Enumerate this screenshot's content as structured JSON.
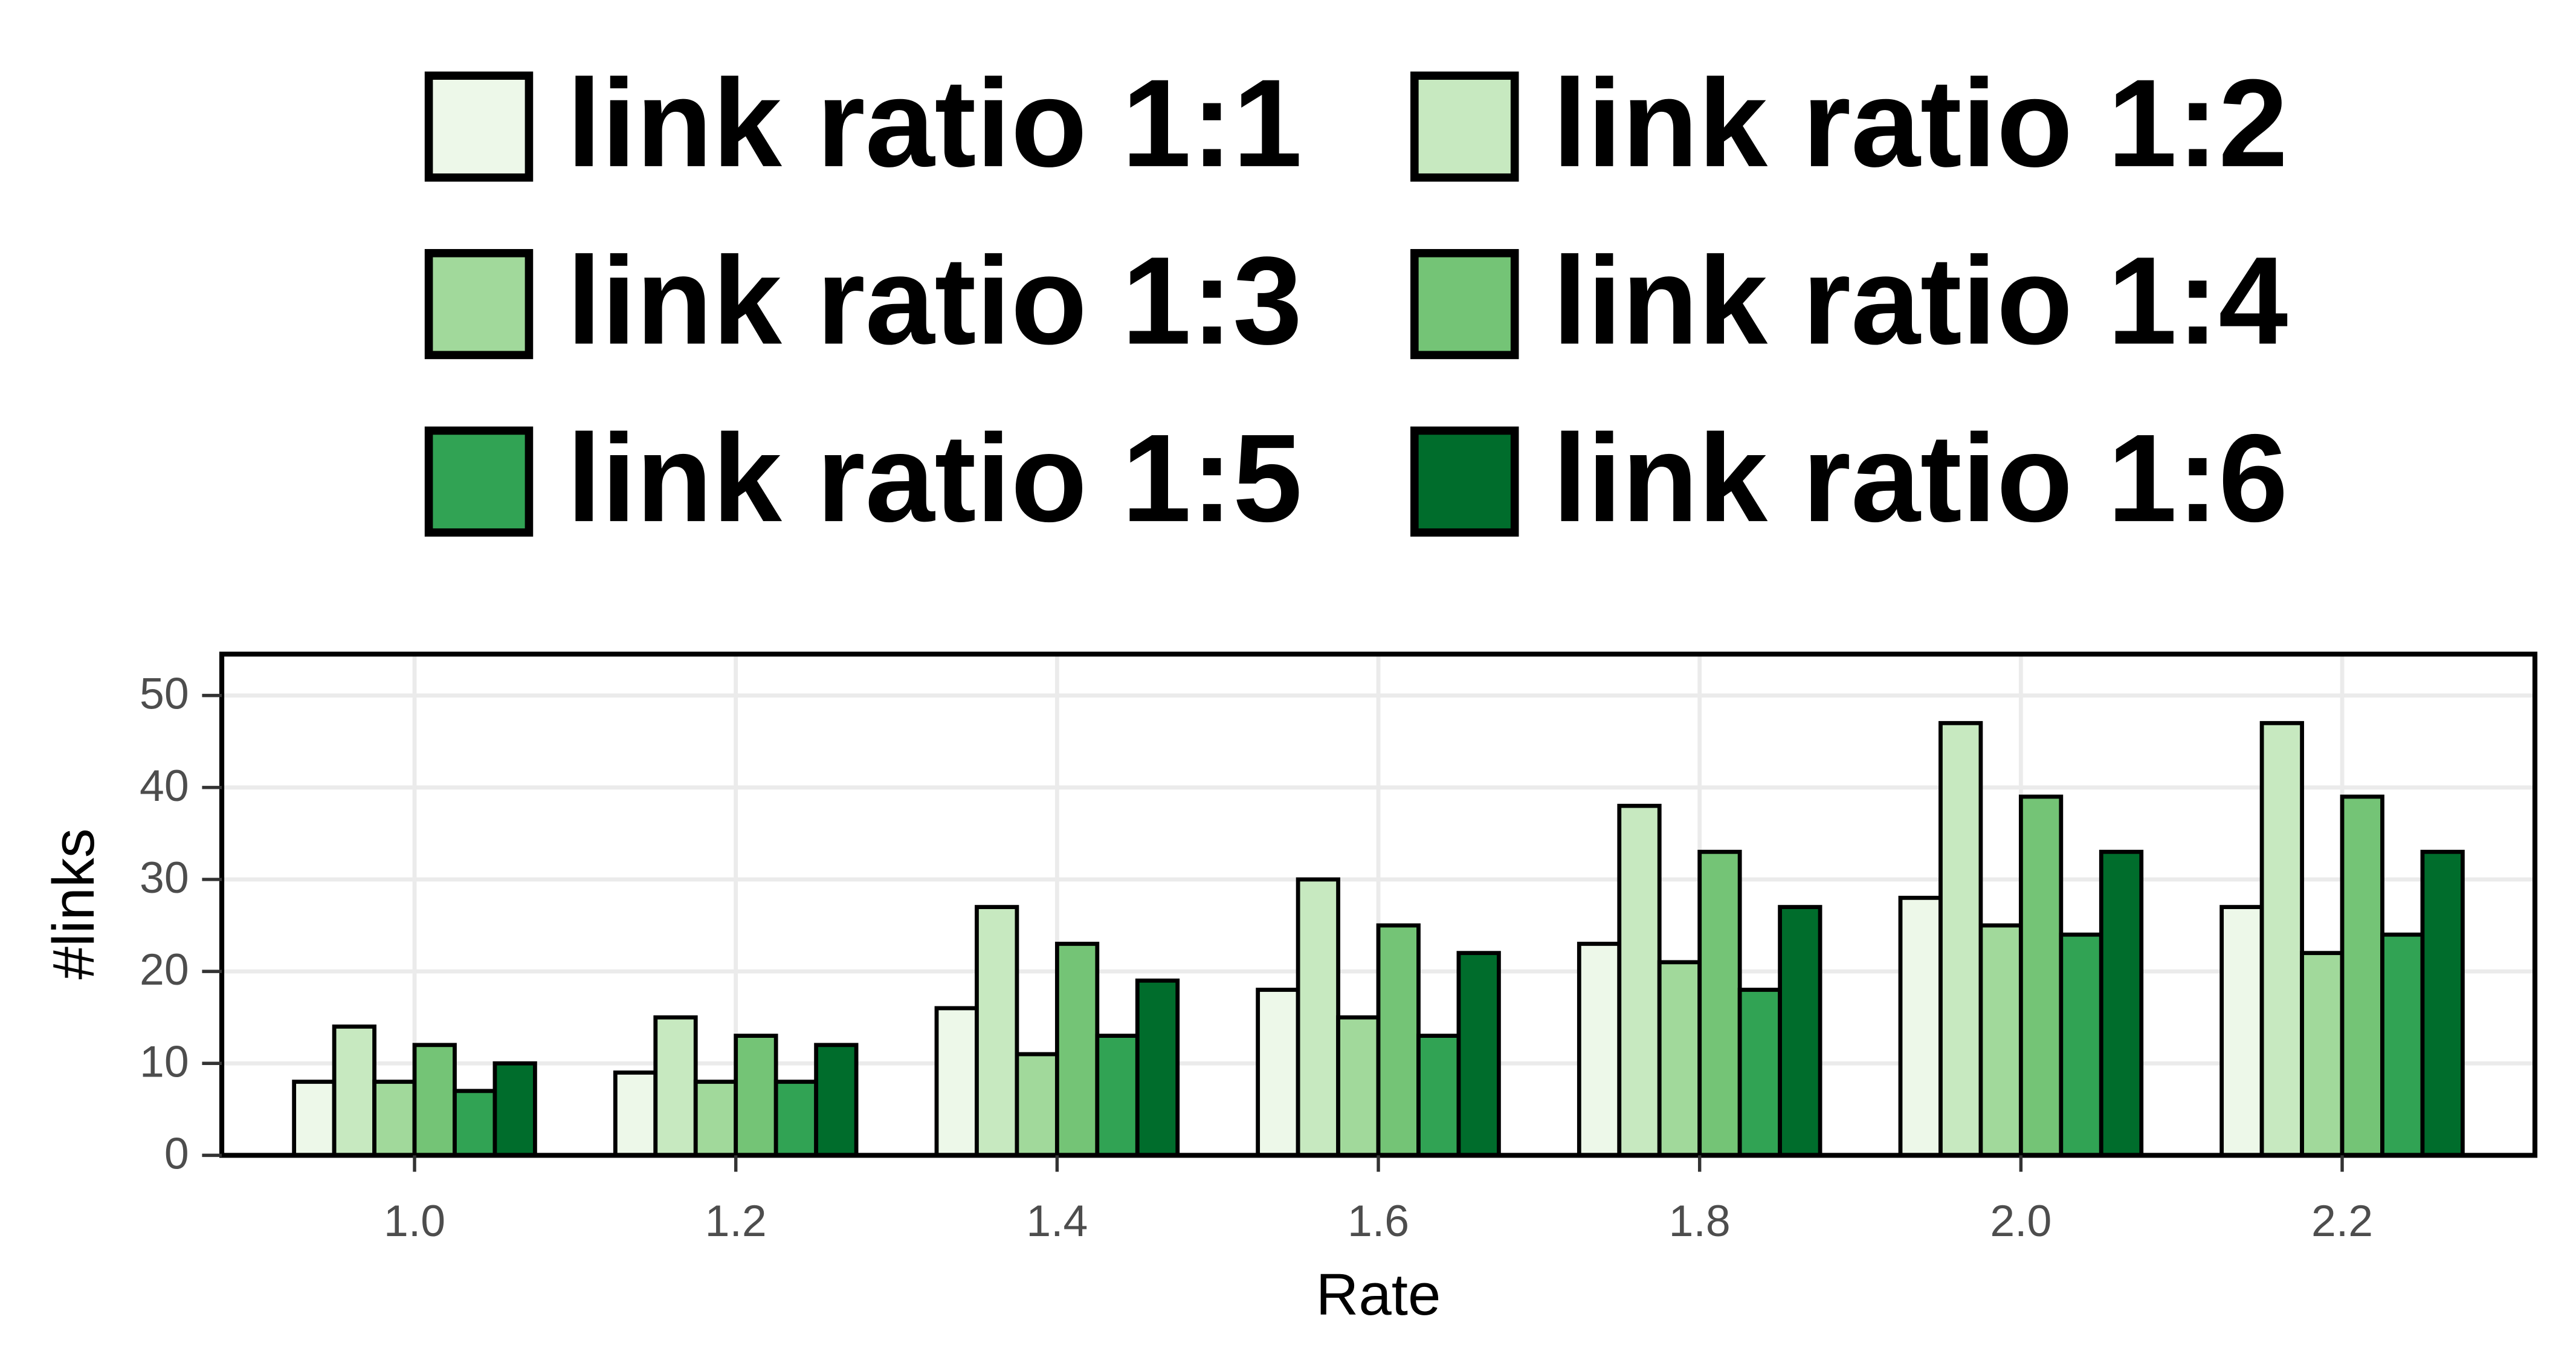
{
  "chart_data": {
    "type": "bar",
    "x_label": "Rate",
    "y_label": "#links",
    "x": [
      1,
      1.2,
      1.4,
      1.6,
      1.8,
      {
        "value": 2,
        "label": "2.0"
      },
      2.2
    ],
    "xlim": [
      0.88,
      2.32
    ],
    "xticks": [
      {
        "value": 1,
        "label": "1.0"
      },
      1.2,
      1.4,
      1.6,
      1.8,
      {
        "value": 2,
        "label": "2.0"
      },
      2.2
    ],
    "ylim": [
      0,
      54.5
    ],
    "yticks": [
      0,
      10,
      20,
      30,
      40,
      50
    ],
    "grid": true,
    "legend_position": "top",
    "series": [
      {
        "name": "link ratio 1:1",
        "color": "#edf8e9",
        "values": [
          8,
          9,
          16,
          18,
          23,
          28,
          27
        ]
      },
      {
        "name": "link ratio 1:2",
        "color": "#c7e9c0",
        "values": [
          14,
          15,
          27,
          30,
          38,
          47,
          47
        ]
      },
      {
        "name": "link ratio 1:3",
        "color": "#a1d99b",
        "values": [
          8,
          8,
          11,
          15,
          21,
          25,
          22
        ]
      },
      {
        "name": "link ratio 1:4",
        "color": "#74c476",
        "values": [
          12,
          13,
          23,
          25,
          33,
          39,
          39
        ]
      },
      {
        "name": "link ratio 1:5",
        "color": "#31a354",
        "values": [
          7,
          8,
          13,
          13,
          18,
          24,
          24
        ]
      },
      {
        "name": "link ratio 1:6",
        "color": "#006d2c",
        "values": [
          10,
          12,
          19,
          22,
          27,
          33,
          33
        ]
      }
    ]
  }
}
